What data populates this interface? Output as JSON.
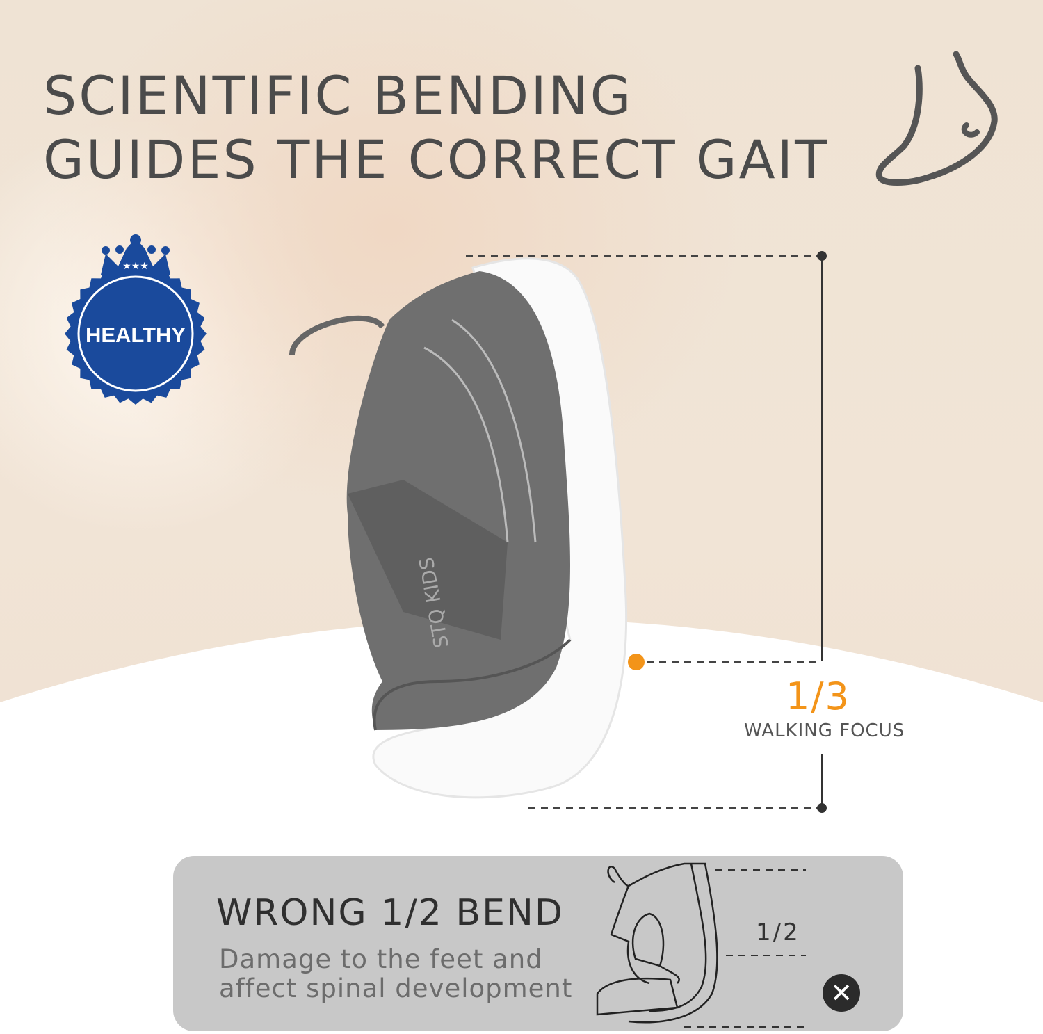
{
  "headline": {
    "line1": "SCIENTIFIC BENDING",
    "line2": "GUIDES THE CORRECT GAIT"
  },
  "badge": {
    "text": "HEALTHY",
    "color": "#1a4a9c"
  },
  "product": {
    "brand_text": "STQ KIDS"
  },
  "correct_bend": {
    "ratio": "1/3",
    "label": "WALKING FOCUS",
    "accent_color": "#f39419"
  },
  "wrong_bend": {
    "title": "WRONG 1/2 BEND",
    "desc_line1": "Damage to the feet and",
    "desc_line2": "affect spinal development",
    "ratio": "1/2",
    "icon": "x-icon"
  },
  "icons": {
    "foot": "foot-icon"
  }
}
